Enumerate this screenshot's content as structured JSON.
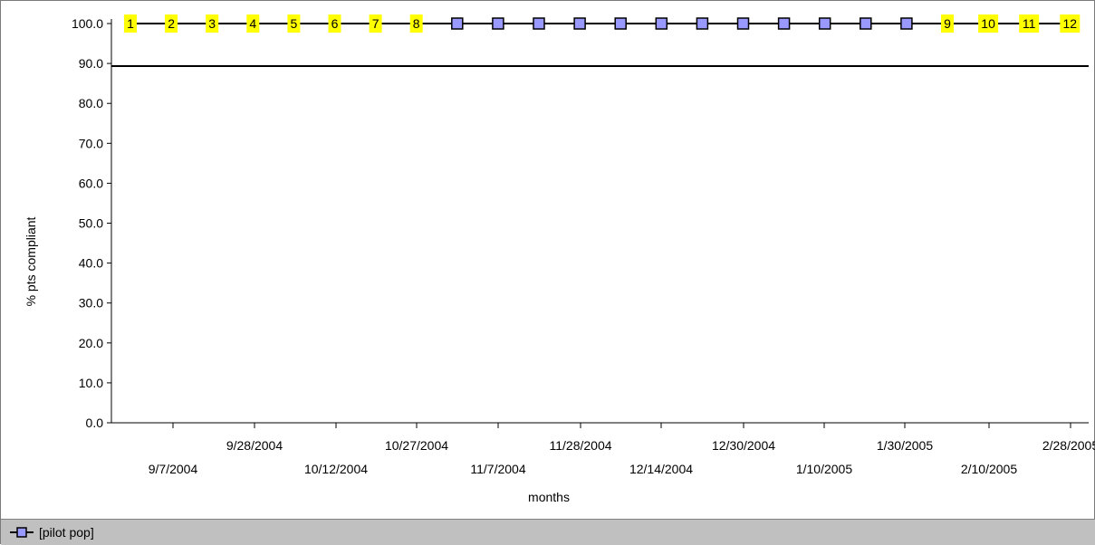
{
  "chart_data": {
    "type": "line",
    "title": "",
    "xlabel": "months",
    "ylabel": "% pts compliant",
    "ylim": [
      0,
      100
    ],
    "y_ticks": [
      "0.0",
      "10.0",
      "20.0",
      "30.0",
      "40.0",
      "50.0",
      "60.0",
      "70.0",
      "80.0",
      "90.0",
      "100.0"
    ],
    "x_tick_labels_upper": [
      "9/28/2004",
      "10/27/2004",
      "11/28/2004",
      "12/30/2004",
      "1/30/2005",
      "2/28/2005"
    ],
    "x_tick_labels_lower": [
      "9/7/2004",
      "10/12/2004",
      "11/7/2004",
      "12/14/2004",
      "1/10/2005",
      "2/10/2005"
    ],
    "grid": false,
    "legend_position": "bottom-left",
    "reference_line": 95,
    "series": [
      {
        "name": "[pilot pop]",
        "color": "#9999ff",
        "values": [
          100,
          100,
          100,
          100,
          100,
          100,
          100,
          100,
          100,
          100,
          100,
          100,
          100,
          100,
          100,
          100,
          100,
          100,
          100,
          100,
          100,
          100,
          100,
          100
        ],
        "annotations": [
          "1",
          "2",
          "3",
          "4",
          "5",
          "6",
          "7",
          "8",
          "",
          "",
          "",
          "",
          "",
          "",
          "",
          "",
          "",
          "",
          "",
          "",
          "9",
          "10",
          "11",
          "12"
        ]
      }
    ]
  },
  "legend": {
    "items": [
      {
        "label": "[pilot pop]",
        "color": "#9999ff"
      }
    ]
  }
}
